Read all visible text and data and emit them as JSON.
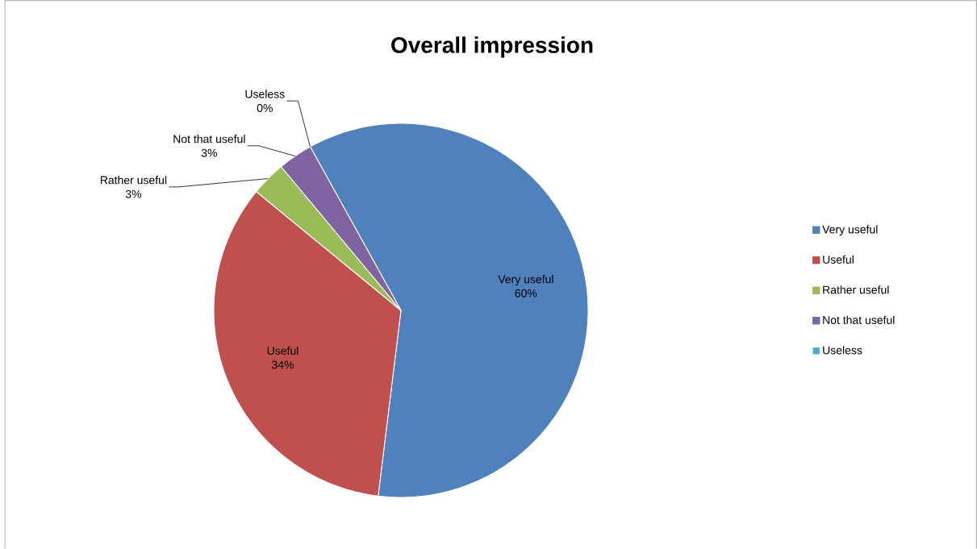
{
  "chart_data": {
    "type": "pie",
    "title": "Overall impression",
    "categories": [
      "Very useful",
      "Useful",
      "Rather useful",
      "Not that useful",
      "Useless"
    ],
    "values": [
      60,
      34,
      3,
      3,
      0
    ],
    "value_labels": [
      "60%",
      "34%",
      "3%",
      "3%",
      "0%"
    ],
    "colors": [
      "#4f81bd",
      "#c0504d",
      "#9bbb59",
      "#8064a2",
      "#4bacc6"
    ],
    "legend": "right"
  }
}
